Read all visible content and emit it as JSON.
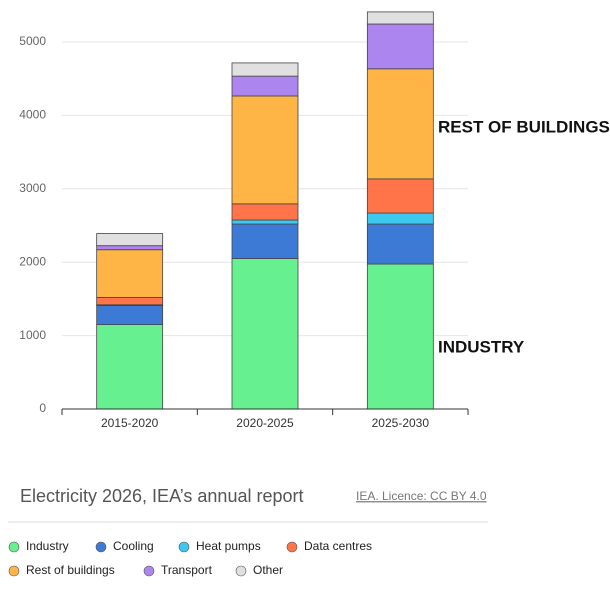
{
  "chart_data": {
    "type": "stacked_bar",
    "title": "Electricity 2026, IEA’s annual report",
    "source": "IEA. Licence: CC BY 4.0",
    "annotations": [
      "REST OF BUILDINGS",
      "INDUSTRY"
    ],
    "categories": [
      "2015-2020",
      "2020-2025",
      "2025-2030"
    ],
    "series": [
      {
        "name": "Industry",
        "color": "#66f08f",
        "values": [
          1150,
          2050,
          1975
        ]
      },
      {
        "name": "Cooling",
        "color": "#3d7ad6",
        "values": [
          260,
          470,
          545
        ]
      },
      {
        "name": "Heat pumps",
        "color": "#3dc8f0",
        "values": [
          10,
          55,
          150
        ]
      },
      {
        "name": "Data centres",
        "color": "#ff7448",
        "values": [
          100,
          220,
          465
        ]
      },
      {
        "name": "Rest of buildings",
        "color": "#ffb545",
        "values": [
          650,
          1470,
          1500
        ]
      },
      {
        "name": "Transport",
        "color": "#ad85ee",
        "values": [
          55,
          270,
          610
        ]
      },
      {
        "name": "Other",
        "color": "#e0e0e0",
        "values": [
          165,
          180,
          165
        ]
      }
    ],
    "ylim": [
      0,
      5000
    ],
    "yticks": [
      0,
      1000,
      2000,
      3000,
      4000,
      5000
    ],
    "grid": true
  }
}
